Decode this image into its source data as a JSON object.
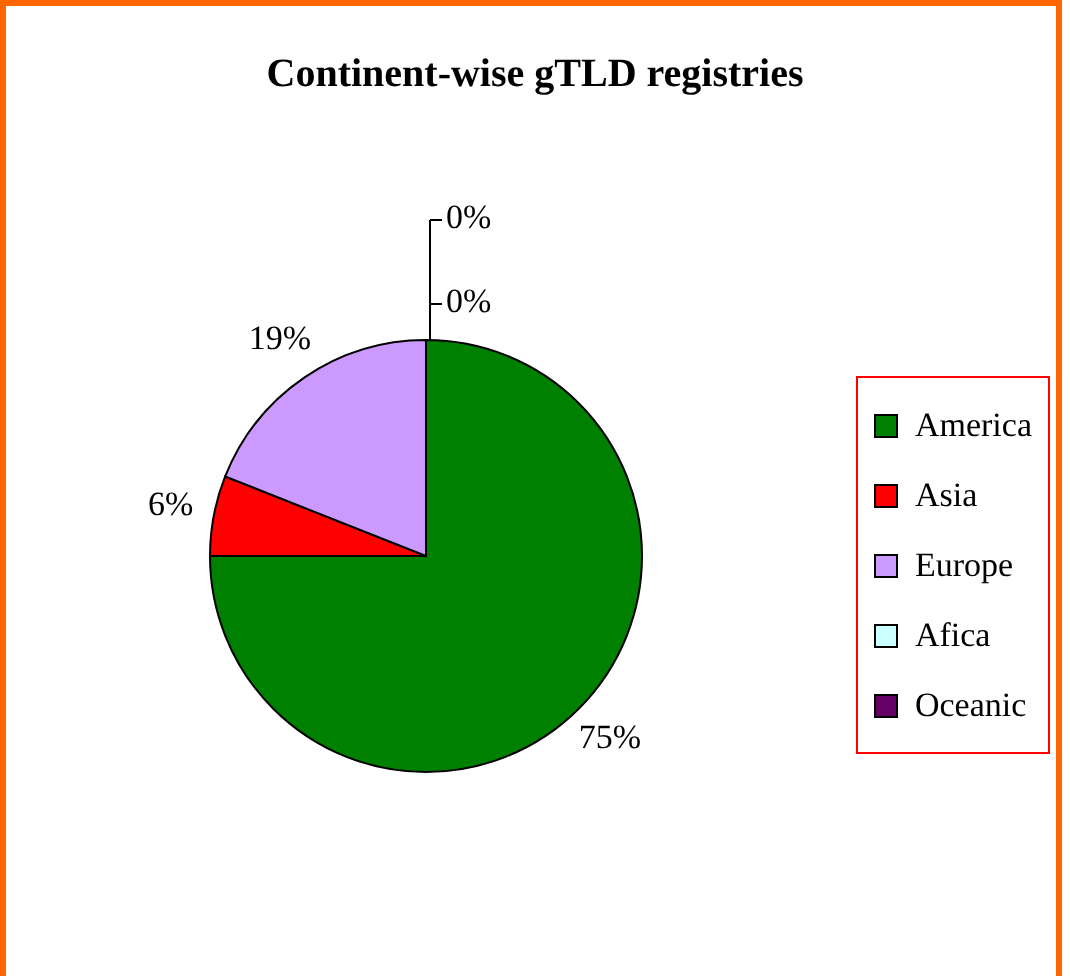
{
  "chart_data": {
    "type": "pie",
    "title": "Continent-wise gTLD registries",
    "categories": [
      "America",
      "Asia",
      "Europe",
      "Afica",
      "Oceanic"
    ],
    "values": [
      75,
      6,
      19,
      0,
      0
    ],
    "colors": [
      "#008000",
      "#ff0000",
      "#cc99ff",
      "#ccffff",
      "#660066"
    ],
    "value_labels": [
      "75%",
      "6%",
      "19%",
      "0%",
      "0%"
    ],
    "legend": "right"
  }
}
